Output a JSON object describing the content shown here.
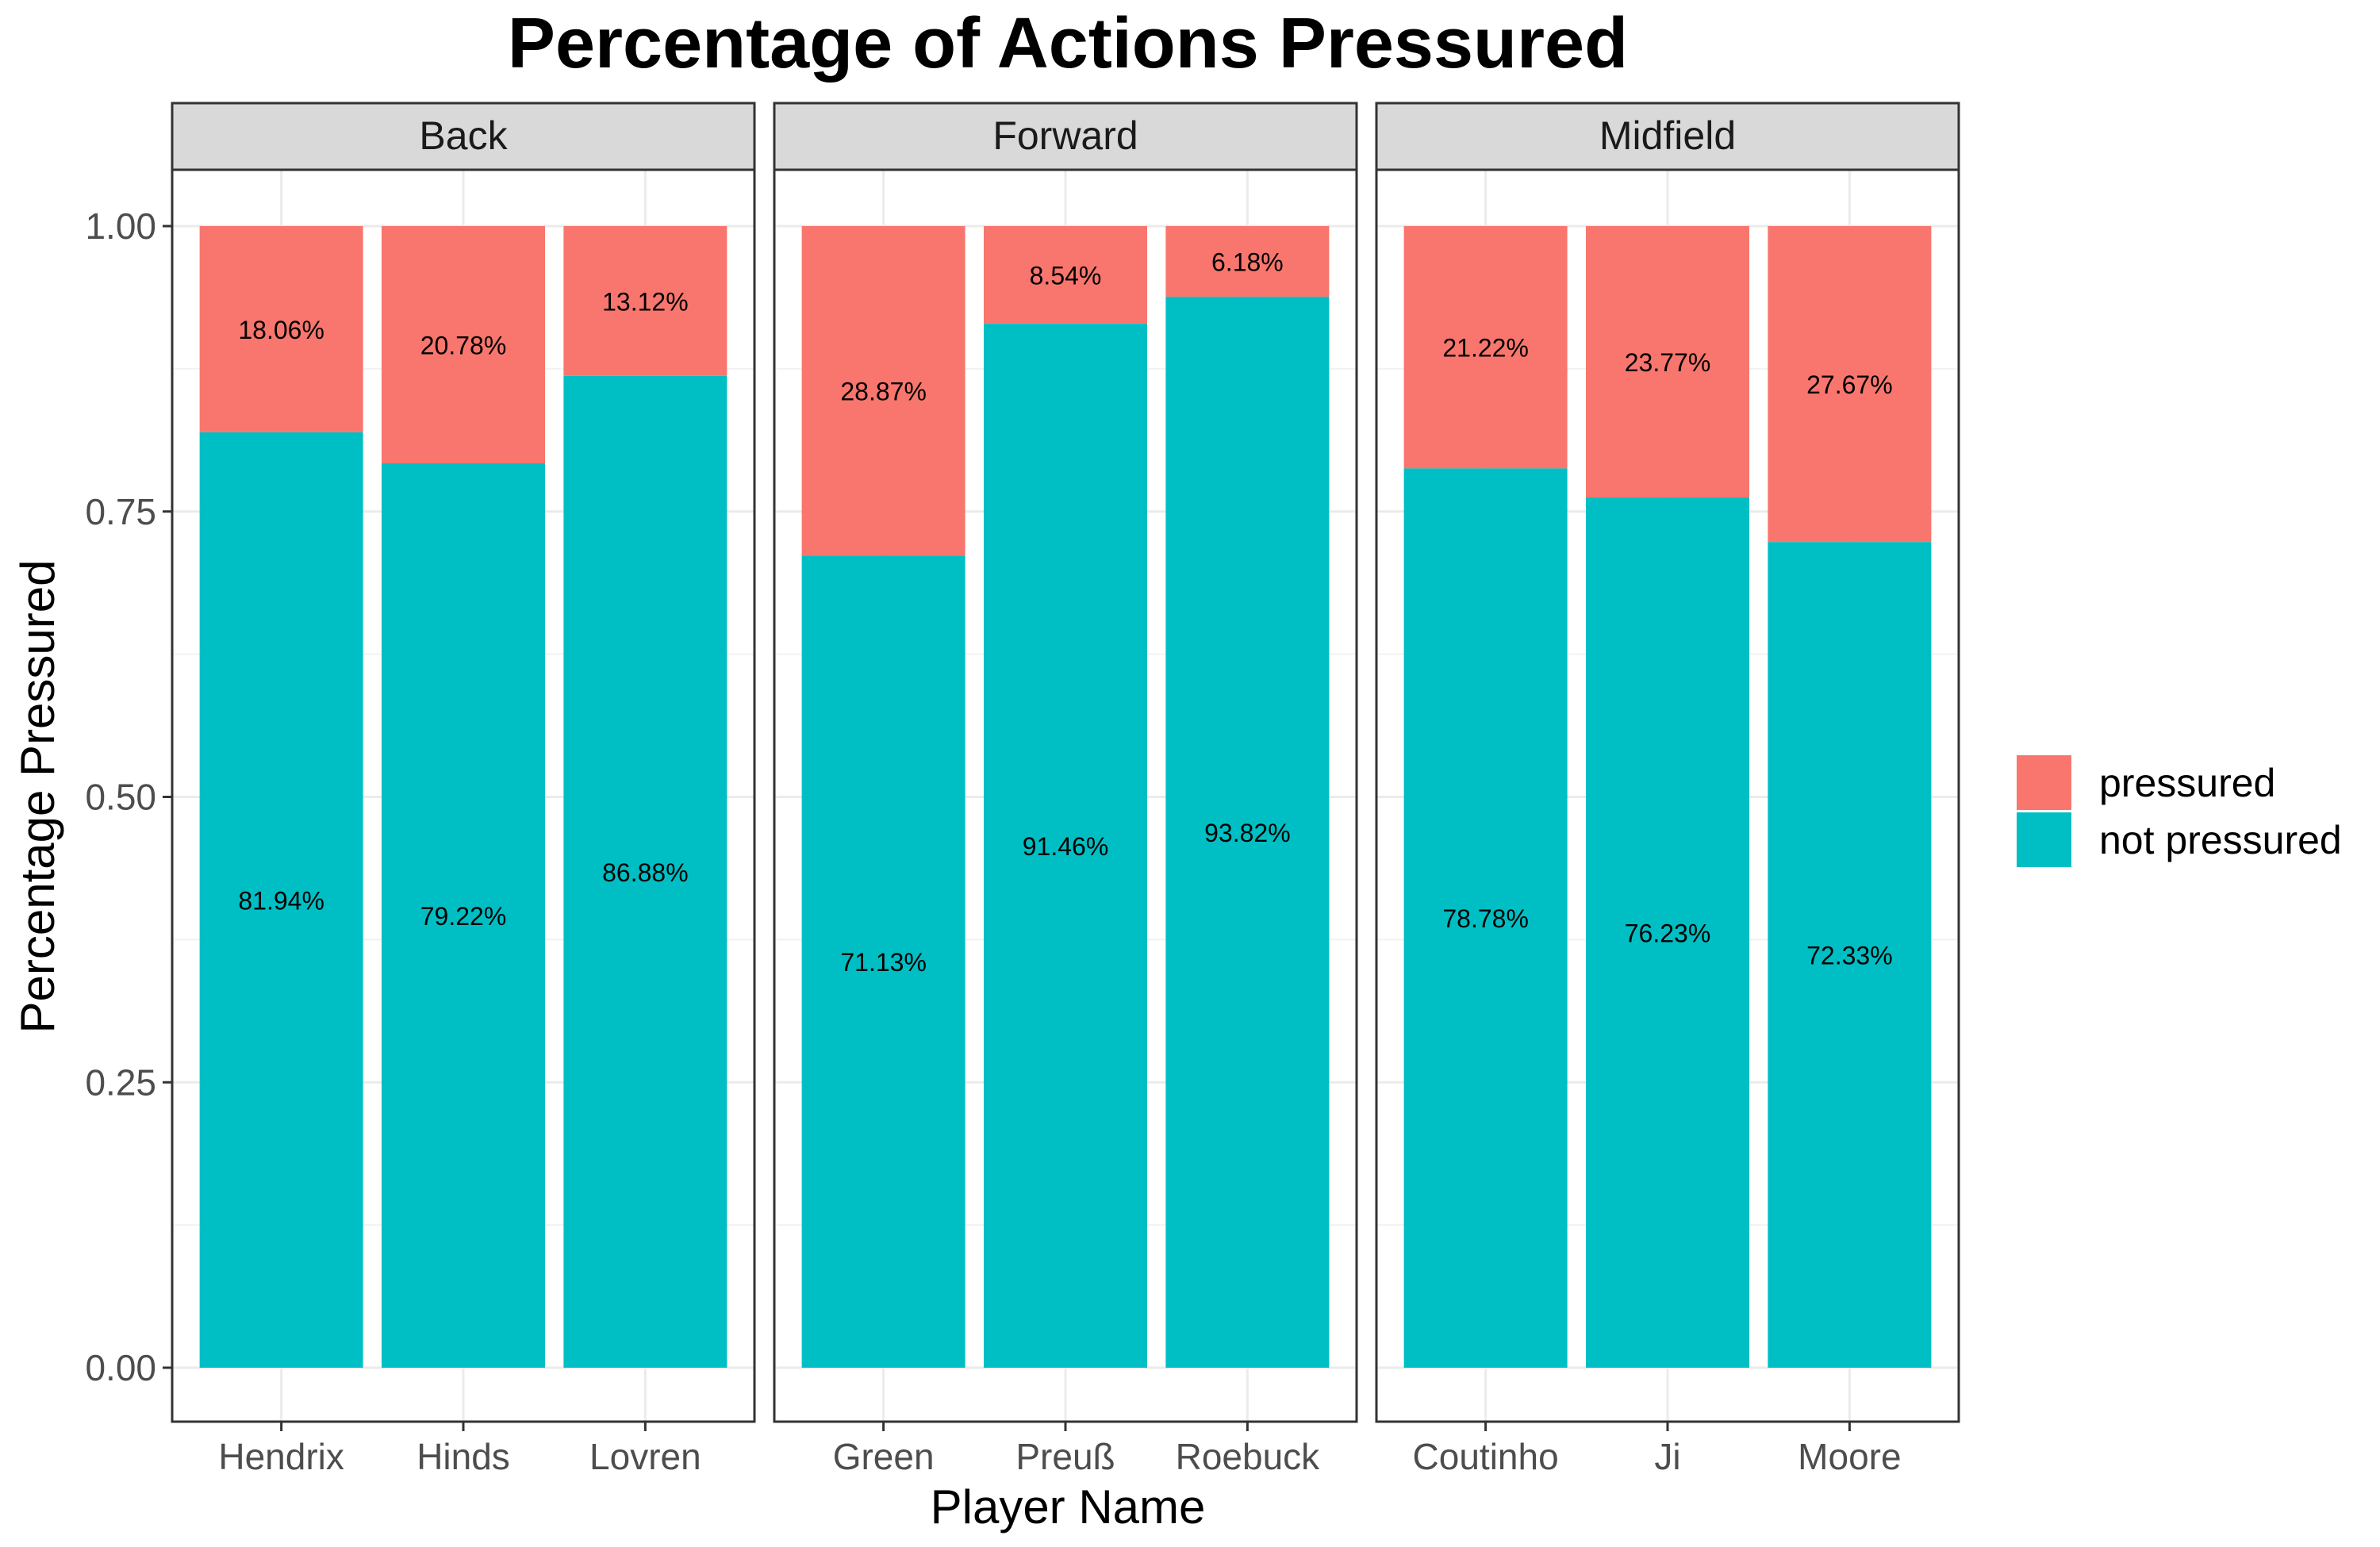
{
  "chart_data": {
    "type": "bar",
    "stacked": true,
    "faceted": true,
    "title": "Percentage of Actions Pressured",
    "xlabel": "Player Name",
    "ylabel": "Percentage Pressured",
    "ylim": [
      0,
      1
    ],
    "y_ticks": [
      "0.00",
      "0.25",
      "0.50",
      "0.75",
      "1.00"
    ],
    "y_tick_values": [
      0,
      0.25,
      0.5,
      0.75,
      1.0
    ],
    "grid": true,
    "legend": {
      "position": "right",
      "entries": [
        {
          "name": "pressured",
          "color": "#F8766D"
        },
        {
          "name": "not pressured",
          "color": "#00BFC4"
        }
      ]
    },
    "facets": [
      {
        "name": "Back",
        "categories": [
          "Hendrix",
          "Hinds",
          "Lovren"
        ],
        "series": [
          {
            "name": "not pressured",
            "values": [
              0.8194,
              0.7922,
              0.8688
            ],
            "labels": [
              "81.94%",
              "79.22%",
              "86.88%"
            ]
          },
          {
            "name": "pressured",
            "values": [
              0.1806,
              0.2078,
              0.1312
            ],
            "labels": [
              "18.06%",
              "20.78%",
              "13.12%"
            ]
          }
        ]
      },
      {
        "name": "Forward",
        "categories": [
          "Green",
          "Preuß",
          "Roebuck"
        ],
        "series": [
          {
            "name": "not pressured",
            "values": [
              0.7113,
              0.9146,
              0.9382
            ],
            "labels": [
              "71.13%",
              "91.46%",
              "93.82%"
            ]
          },
          {
            "name": "pressured",
            "values": [
              0.2887,
              0.0854,
              0.0618
            ],
            "labels": [
              "28.87%",
              "8.54%",
              "6.18%"
            ]
          }
        ]
      },
      {
        "name": "Midfield",
        "categories": [
          "Coutinho",
          "Ji",
          "Moore"
        ],
        "series": [
          {
            "name": "not pressured",
            "values": [
              0.7878,
              0.7623,
              0.7233
            ],
            "labels": [
              "78.78%",
              "76.23%",
              "72.33%"
            ]
          },
          {
            "name": "pressured",
            "values": [
              0.2122,
              0.2377,
              0.2767
            ],
            "labels": [
              "21.22%",
              "23.77%",
              "27.67%"
            ]
          }
        ]
      }
    ]
  }
}
